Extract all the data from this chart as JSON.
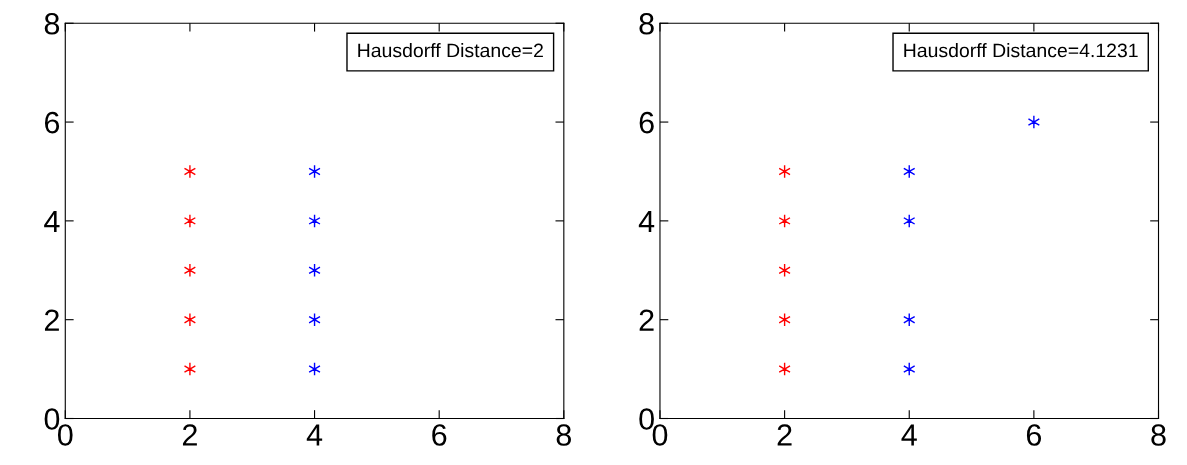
{
  "chart_data": [
    {
      "type": "scatter",
      "xlim": [
        0,
        8
      ],
      "ylim": [
        0,
        8
      ],
      "xticks": [
        0,
        2,
        4,
        6,
        8
      ],
      "yticks": [
        0,
        2,
        4,
        6,
        8
      ],
      "grid": false,
      "marker": "cross",
      "annotations": [
        "Hausdorff Distance=2"
      ],
      "series": [
        {
          "color": "#ff0000",
          "x": [
            2,
            2,
            2,
            2,
            2
          ],
          "values": [
            1,
            2,
            3,
            4,
            5
          ]
        },
        {
          "color": "#0000ff",
          "x": [
            4,
            4,
            4,
            4,
            4
          ],
          "values": [
            1,
            2,
            3,
            4,
            5
          ]
        }
      ]
    },
    {
      "type": "scatter",
      "xlim": [
        0,
        8
      ],
      "ylim": [
        0,
        8
      ],
      "xticks": [
        0,
        2,
        4,
        6,
        8
      ],
      "yticks": [
        0,
        2,
        4,
        6,
        8
      ],
      "grid": false,
      "marker": "cross",
      "annotations": [
        "Hausdorff Distance=4.1231"
      ],
      "series": [
        {
          "color": "#ff0000",
          "x": [
            2,
            2,
            2,
            2,
            2
          ],
          "values": [
            1,
            2,
            3,
            4,
            5
          ]
        },
        {
          "color": "#0000ff",
          "x": [
            4,
            4,
            4,
            4,
            6
          ],
          "values": [
            1,
            2,
            4,
            5,
            6
          ]
        }
      ]
    }
  ]
}
